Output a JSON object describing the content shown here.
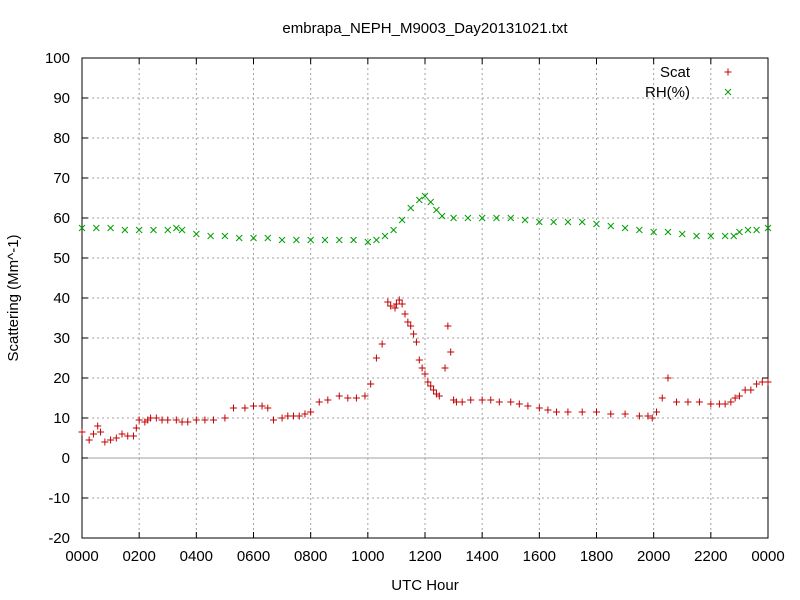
{
  "chart_data": {
    "type": "scatter",
    "title": "embrapa_NEPH_M9003_Day20131021.txt",
    "xlabel": "UTC Hour",
    "ylabel": "Scattering (Mm^-1)",
    "xlim": [
      0,
      24
    ],
    "ylim": [
      -20,
      100
    ],
    "x_tick_labels": [
      "0000",
      "0200",
      "0400",
      "0600",
      "0800",
      "1000",
      "1200",
      "1400",
      "1600",
      "1800",
      "2000",
      "2200",
      "0000"
    ],
    "y_ticks": [
      -20,
      -10,
      0,
      10,
      20,
      30,
      40,
      50,
      60,
      70,
      80,
      90,
      100
    ],
    "grid": true,
    "zero_line": true,
    "legend_position": "top-right",
    "series": [
      {
        "name": "Scat",
        "marker": "+",
        "color": "#c00000",
        "x": [
          0.0,
          0.25,
          0.4,
          0.55,
          0.65,
          0.8,
          1.0,
          1.2,
          1.4,
          1.6,
          1.8,
          1.9,
          2.0,
          2.2,
          2.3,
          2.4,
          2.6,
          2.8,
          3.0,
          3.3,
          3.5,
          3.7,
          4.0,
          4.3,
          4.6,
          5.0,
          5.3,
          5.7,
          6.0,
          6.3,
          6.5,
          6.7,
          7.0,
          7.2,
          7.4,
          7.6,
          7.8,
          8.0,
          8.3,
          8.6,
          9.0,
          9.3,
          9.6,
          9.9,
          10.1,
          10.3,
          10.5,
          10.7,
          10.8,
          10.95,
          11.0,
          11.1,
          11.2,
          11.3,
          11.4,
          11.5,
          11.6,
          11.7,
          11.8,
          11.9,
          12.0,
          12.1,
          12.2,
          12.3,
          12.4,
          12.5,
          12.7,
          12.8,
          12.9,
          13.0,
          13.1,
          13.3,
          13.6,
          14.0,
          14.3,
          14.6,
          15.0,
          15.3,
          15.6,
          16.0,
          16.3,
          16.6,
          17.0,
          17.5,
          18.0,
          18.5,
          19.0,
          19.5,
          19.8,
          19.95,
          20.1,
          20.3,
          20.5,
          20.8,
          21.2,
          21.6,
          22.0,
          22.3,
          22.5,
          22.7,
          22.85,
          23.0,
          23.2,
          23.4,
          23.6,
          23.8,
          24.0
        ],
        "y": [
          6.5,
          4.5,
          6.0,
          8.0,
          6.5,
          4.0,
          4.5,
          5.0,
          6.0,
          5.5,
          5.5,
          7.5,
          9.5,
          9.0,
          9.5,
          10.0,
          10.0,
          9.5,
          9.5,
          9.5,
          9.0,
          9.0,
          9.5,
          9.5,
          9.5,
          10.0,
          12.5,
          12.5,
          13.0,
          13.0,
          12.5,
          9.5,
          10.0,
          10.5,
          10.5,
          10.5,
          11.0,
          11.5,
          14.0,
          14.5,
          15.5,
          15.0,
          15.0,
          15.5,
          18.5,
          25.0,
          28.5,
          39.0,
          38.0,
          37.5,
          38.5,
          39.5,
          38.5,
          36.0,
          34.0,
          33.0,
          31.0,
          29.0,
          24.5,
          22.5,
          21.0,
          19.0,
          18.0,
          17.0,
          16.0,
          15.5,
          22.5,
          33.0,
          26.5,
          14.5,
          14.0,
          14.0,
          14.5,
          14.5,
          14.5,
          14.0,
          14.0,
          13.5,
          13.0,
          12.5,
          12.0,
          11.5,
          11.5,
          11.5,
          11.5,
          11.0,
          11.0,
          10.5,
          10.5,
          10.0,
          11.5,
          15.0,
          20.0,
          14.0,
          14.0,
          14.0,
          13.5,
          13.5,
          13.5,
          14.0,
          15.0,
          15.5,
          17.0,
          17.0,
          18.5,
          19.0,
          19.0
        ]
      },
      {
        "name": "RH(%)",
        "marker": "x",
        "color": "#00a000",
        "x": [
          0.0,
          0.5,
          1.0,
          1.5,
          2.0,
          2.5,
          3.0,
          3.3,
          3.5,
          4.0,
          4.5,
          5.0,
          5.5,
          6.0,
          6.5,
          7.0,
          7.5,
          8.0,
          8.5,
          9.0,
          9.5,
          10.0,
          10.3,
          10.6,
          10.9,
          11.2,
          11.5,
          11.8,
          12.0,
          12.2,
          12.4,
          12.6,
          13.0,
          13.5,
          14.0,
          14.5,
          15.0,
          15.5,
          16.0,
          16.5,
          17.0,
          17.5,
          18.0,
          18.5,
          19.0,
          19.5,
          20.0,
          20.5,
          21.0,
          21.5,
          22.0,
          22.5,
          22.8,
          23.0,
          23.3,
          23.6,
          24.0
        ],
        "y": [
          57.5,
          57.5,
          57.5,
          57.0,
          57.0,
          57.0,
          57.0,
          57.5,
          57.0,
          56.0,
          55.5,
          55.5,
          55.0,
          55.0,
          55.0,
          54.5,
          54.5,
          54.5,
          54.5,
          54.5,
          54.5,
          54.0,
          54.5,
          55.5,
          57.0,
          59.5,
          62.5,
          64.5,
          65.5,
          64.0,
          62.0,
          60.5,
          60.0,
          60.0,
          60.0,
          60.0,
          60.0,
          59.5,
          59.0,
          59.0,
          59.0,
          59.0,
          58.5,
          58.0,
          57.5,
          57.0,
          56.5,
          56.5,
          56.0,
          55.5,
          55.5,
          55.5,
          55.5,
          56.5,
          57.0,
          57.0,
          57.5
        ]
      }
    ]
  }
}
